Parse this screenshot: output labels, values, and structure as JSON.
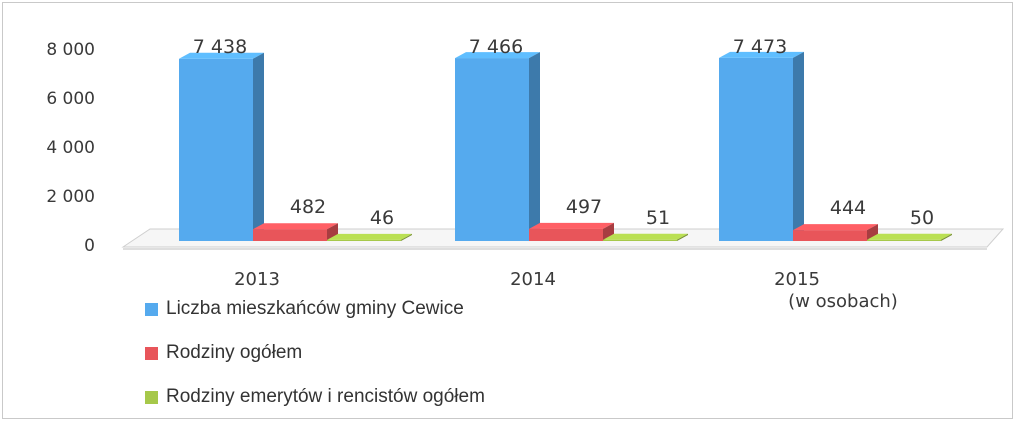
{
  "chart_data": {
    "type": "bar",
    "categories": [
      "2013",
      "2014",
      "2015"
    ],
    "series": [
      {
        "name": "Liczba mieszkańców gminy Cewice",
        "values": [
          7438,
          7466,
          7473
        ],
        "color": "#55aaee",
        "labels": [
          "7 438",
          "7 466",
          "7 473"
        ]
      },
      {
        "name": "Rodziny ogółem",
        "values": [
          482,
          497,
          444
        ],
        "color": "#e8555a",
        "labels": [
          "482",
          "497",
          "444"
        ]
      },
      {
        "name": "Rodziny emerytów i rencistów ogółem",
        "values": [
          46,
          51,
          50
        ],
        "color": "#a6c84a",
        "labels": [
          "46",
          "51",
          "50"
        ]
      }
    ],
    "ylim": [
      0,
      8000
    ],
    "yticks": [
      0,
      2000,
      4000,
      6000,
      8000
    ],
    "ytick_labels": [
      "0",
      "2 000",
      "4 000",
      "6 000",
      "8 000"
    ],
    "note": "(w osobach)",
    "grid": false,
    "legend_position": "bottom-left"
  }
}
